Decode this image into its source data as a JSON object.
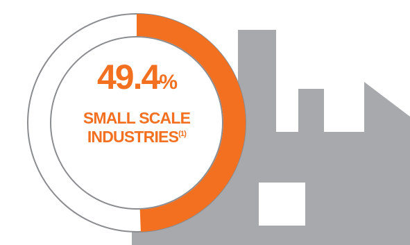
{
  "chart_data": {
    "type": "donut",
    "values": [
      49.4
    ],
    "unit": "%",
    "max": 100,
    "color": "#f37021",
    "label_lines": [
      "SMALL SCALE",
      "INDUSTRIES"
    ],
    "footnote_marker": "(1)"
  }
}
